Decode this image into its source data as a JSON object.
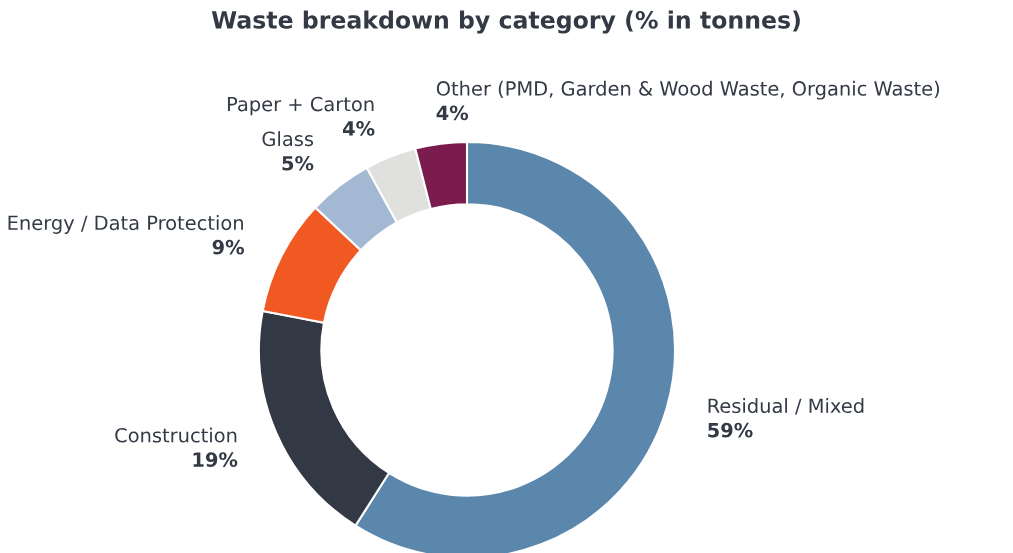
{
  "chart_data": {
    "type": "donut",
    "title": "Waste breakdown by category (% in tonnes)",
    "categories": [
      "Residual / Mixed",
      "Construction",
      "Energy / Data Protection",
      "Glass",
      "Paper + Carton",
      "Other (PMD, Garden & Wood Waste, Organic Waste)"
    ],
    "values": [
      59,
      19,
      9,
      5,
      4,
      4
    ],
    "value_labels": [
      "59%",
      "19%",
      "9%",
      "5%",
      "4%",
      "4%"
    ],
    "colors": [
      "#5b87ad",
      "#323844",
      "#f05a22",
      "#a3b8d2",
      "#e0e0de",
      "#7b1c4f"
    ],
    "legend": false
  }
}
